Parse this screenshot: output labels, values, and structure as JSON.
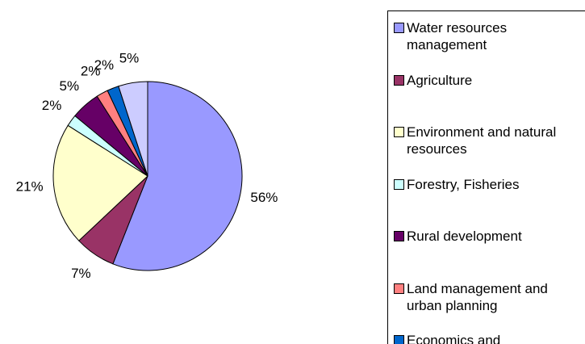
{
  "chart_data": {
    "type": "pie",
    "categories": [
      "Water resources management",
      "Agriculture",
      "Environment and natural resources",
      "Forestry, Fisheries",
      "Rural development",
      "Land management and urban planning",
      "Economics and",
      null
    ],
    "values": [
      56,
      7,
      21,
      2,
      5,
      2,
      2,
      5
    ],
    "value_labels": [
      "56%",
      "7%",
      "21%",
      "2%",
      "5%",
      "2%",
      "2%",
      "5%"
    ],
    "colors": [
      "#9999ff",
      "#993366",
      "#ffffcc",
      "#ccffff",
      "#660066",
      "#ff8080",
      "#0066cc",
      "#ccccff"
    ],
    "legend": "right"
  }
}
